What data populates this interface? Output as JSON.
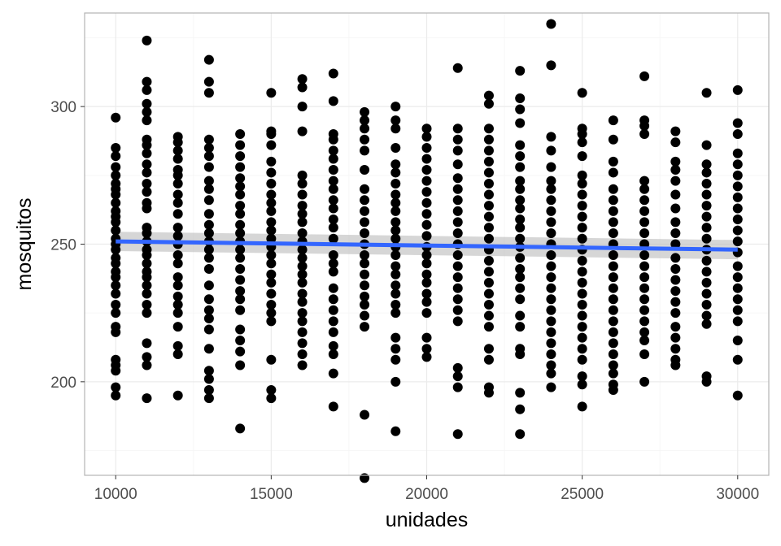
{
  "chart_data": {
    "type": "scatter",
    "title": "",
    "xlabel": "unidades",
    "ylabel": "mosquitos",
    "xlim": [
      9000,
      31000
    ],
    "ylim": [
      166,
      334
    ],
    "x_ticks": [
      10000,
      15000,
      20000,
      25000,
      30000
    ],
    "x_tick_labels": [
      "10000",
      "15000",
      "20000",
      "25000",
      "30000"
    ],
    "x_minor_ticks": [
      12500,
      17500,
      22500,
      27500
    ],
    "y_ticks": [
      200,
      250,
      300
    ],
    "y_tick_labels": [
      "200",
      "250",
      "300"
    ],
    "y_minor_ticks": [
      175,
      225,
      275,
      325
    ],
    "grid": true,
    "legend": "none",
    "colors": {
      "points": "#000000",
      "fit_line": "#3366ff",
      "ribbon": "#bbbbbb",
      "panel_border": "#b3b3b3",
      "grid_major": "#ebebeb",
      "grid_minor": "#f5f5f5"
    },
    "point_columns": [
      {
        "x": 10000,
        "y": [
          296,
          285,
          282,
          278,
          275,
          272,
          270,
          268,
          265,
          262,
          260,
          258,
          255,
          252,
          250,
          248,
          245,
          243,
          240,
          238,
          235,
          232,
          228,
          225,
          220,
          218,
          208,
          206,
          204,
          198,
          195
        ]
      },
      {
        "x": 11000,
        "y": [
          324,
          309,
          306,
          301,
          298,
          295,
          288,
          286,
          283,
          279,
          276,
          272,
          269,
          265,
          263,
          256,
          254,
          251,
          248,
          246,
          243,
          240,
          238,
          235,
          232,
          228,
          225,
          214,
          209,
          206,
          194
        ]
      },
      {
        "x": 12000,
        "y": [
          289,
          287,
          284,
          281,
          277,
          275,
          272,
          268,
          265,
          261,
          256,
          253,
          250,
          246,
          243,
          238,
          235,
          231,
          228,
          225,
          220,
          213,
          210,
          195
        ]
      },
      {
        "x": 13000,
        "y": [
          317,
          309,
          305,
          288,
          285,
          282,
          278,
          273,
          270,
          266,
          261,
          257,
          254,
          251,
          248,
          245,
          241,
          235,
          230,
          226,
          223,
          219,
          212,
          204,
          201,
          197,
          194
        ]
      },
      {
        "x": 14000,
        "y": [
          290,
          286,
          282,
          278,
          274,
          271,
          268,
          264,
          261,
          257,
          254,
          251,
          248,
          245,
          241,
          237,
          233,
          230,
          226,
          219,
          215,
          211,
          206,
          183
        ]
      },
      {
        "x": 15000,
        "y": [
          305,
          291,
          290,
          286,
          280,
          276,
          272,
          268,
          265,
          262,
          258,
          255,
          252,
          249,
          246,
          243,
          239,
          236,
          232,
          228,
          225,
          222,
          208,
          197,
          194
        ]
      },
      {
        "x": 16000,
        "y": [
          310,
          307,
          300,
          291,
          275,
          272,
          268,
          264,
          261,
          258,
          254,
          251,
          248,
          245,
          242,
          239,
          236,
          232,
          229,
          225,
          222,
          218,
          214,
          210,
          206
        ]
      },
      {
        "x": 17000,
        "y": [
          312,
          302,
          290,
          288,
          284,
          281,
          277,
          273,
          270,
          266,
          263,
          259,
          256,
          252,
          246,
          243,
          240,
          234,
          230,
          226,
          222,
          218,
          213,
          210,
          203,
          191
        ]
      },
      {
        "x": 18000,
        "y": [
          298,
          295,
          292,
          288,
          284,
          277,
          270,
          266,
          262,
          258,
          254,
          250,
          246,
          243,
          239,
          235,
          231,
          228,
          224,
          220,
          188,
          165
        ]
      },
      {
        "x": 19000,
        "y": [
          300,
          295,
          292,
          285,
          279,
          276,
          272,
          268,
          265,
          262,
          258,
          255,
          252,
          249,
          246,
          242,
          239,
          235,
          232,
          228,
          225,
          216,
          212,
          208,
          200,
          182
        ]
      },
      {
        "x": 20000,
        "y": [
          292,
          289,
          285,
          281,
          277,
          273,
          269,
          265,
          261,
          257,
          253,
          249,
          246,
          243,
          239,
          236,
          232,
          229,
          225,
          216,
          212,
          209
        ]
      },
      {
        "x": 21000,
        "y": [
          314,
          292,
          288,
          284,
          279,
          274,
          270,
          266,
          262,
          258,
          254,
          250,
          246,
          242,
          238,
          234,
          230,
          226,
          222,
          205,
          202,
          198,
          181
        ]
      },
      {
        "x": 22000,
        "y": [
          304,
          301,
          292,
          288,
          284,
          280,
          276,
          272,
          268,
          264,
          260,
          256,
          252,
          248,
          244,
          240,
          236,
          232,
          228,
          224,
          220,
          212,
          208,
          198,
          196
        ]
      },
      {
        "x": 23000,
        "y": [
          313,
          303,
          299,
          294,
          286,
          282,
          278,
          273,
          270,
          266,
          263,
          259,
          256,
          252,
          249,
          245,
          241,
          238,
          234,
          230,
          224,
          220,
          212,
          210,
          196,
          190,
          181
        ]
      },
      {
        "x": 24000,
        "y": [
          330,
          315,
          289,
          284,
          278,
          273,
          270,
          266,
          262,
          258,
          254,
          250,
          246,
          242,
          238,
          234,
          230,
          226,
          222,
          218,
          214,
          210,
          206,
          203,
          198
        ]
      },
      {
        "x": 25000,
        "y": [
          305,
          292,
          290,
          287,
          282,
          275,
          272,
          268,
          264,
          260,
          256,
          252,
          248,
          244,
          240,
          236,
          232,
          228,
          224,
          220,
          216,
          212,
          208,
          202,
          199,
          191
        ]
      },
      {
        "x": 26000,
        "y": [
          295,
          288,
          280,
          276,
          270,
          266,
          262,
          258,
          254,
          250,
          246,
          242,
          238,
          234,
          230,
          226,
          222,
          218,
          214,
          210,
          206,
          203,
          199,
          197
        ]
      },
      {
        "x": 27000,
        "y": [
          311,
          295,
          293,
          290,
          273,
          270,
          266,
          262,
          258,
          254,
          250,
          246,
          242,
          238,
          234,
          230,
          226,
          222,
          218,
          215,
          210,
          200
        ]
      },
      {
        "x": 28000,
        "y": [
          291,
          287,
          280,
          277,
          273,
          268,
          263,
          258,
          254,
          250,
          245,
          241,
          237,
          233,
          229,
          225,
          220,
          216,
          212,
          208,
          206
        ]
      },
      {
        "x": 29000,
        "y": [
          305,
          286,
          279,
          276,
          272,
          268,
          264,
          260,
          256,
          252,
          248,
          244,
          240,
          236,
          232,
          228,
          224,
          221,
          202,
          200
        ]
      },
      {
        "x": 30000,
        "y": [
          306,
          294,
          290,
          283,
          279,
          275,
          271,
          267,
          263,
          259,
          255,
          251,
          247,
          242,
          238,
          234,
          230,
          226,
          222,
          215,
          208,
          195
        ]
      }
    ],
    "fit_line": {
      "method": "linear",
      "x": [
        10000,
        30000
      ],
      "y": [
        251,
        248
      ],
      "ci_halfwidth": [
        3.5,
        3.5
      ]
    }
  }
}
